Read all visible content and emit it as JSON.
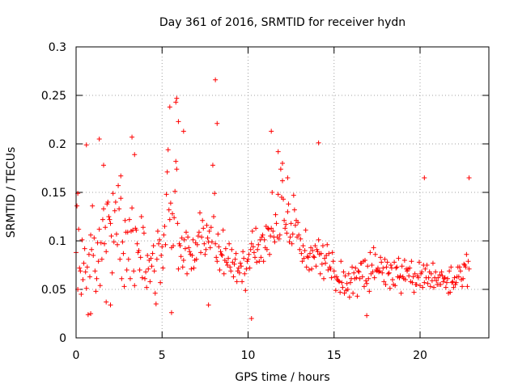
{
  "chart_data": {
    "type": "scatter",
    "title": "Day 361 of 2016, SRMTID for receiver hydn",
    "xlabel": "GPS time / hours",
    "ylabel": "SRMTID / TECUs",
    "xlim": [
      0,
      24
    ],
    "ylim": [
      0,
      0.3
    ],
    "xticks": [
      0,
      5,
      10,
      15,
      20
    ],
    "xtick_labels": [
      "0",
      "5",
      "10",
      "15",
      "20"
    ],
    "yticks": [
      0,
      0.05,
      0.1,
      0.15,
      0.2,
      0.25,
      0.3
    ],
    "ytick_labels": [
      "0",
      "0.05",
      "0.1",
      "0.15",
      "0.2",
      "0.25",
      "0.3"
    ],
    "grid": true,
    "marker": "+",
    "marker_color": "#ff0000",
    "series": [
      {
        "name": "SRMTID",
        "color": "#ff0000",
        "x": [
          0.0,
          0.05,
          0.1,
          0.15,
          0.2,
          0.25,
          0.3,
          0.35,
          0.4,
          0.45,
          0.5,
          0.55,
          0.6,
          0.65,
          0.7,
          0.75,
          0.8,
          0.85,
          0.9,
          0.95,
          1.0,
          1.05,
          1.1,
          1.15,
          1.2,
          1.25,
          1.3,
          1.35,
          1.4,
          1.45,
          1.5,
          1.55,
          1.6,
          1.65,
          1.7,
          1.75,
          1.8,
          1.85,
          1.9,
          1.95,
          2.0,
          2.05,
          2.1,
          2.15,
          2.2,
          2.25,
          2.3,
          2.35,
          2.4,
          2.45,
          2.5,
          2.55,
          2.6,
          2.65,
          2.7,
          2.75,
          2.8,
          2.85,
          2.9,
          2.95,
          3.0,
          3.05,
          3.1,
          3.15,
          3.2,
          3.25,
          3.3,
          3.35,
          3.4,
          3.45,
          3.5,
          3.55,
          3.6,
          3.65,
          3.7,
          3.75,
          3.8,
          3.85,
          3.9,
          3.95,
          4.0,
          4.05,
          4.1,
          4.15,
          4.2,
          4.25,
          4.3,
          4.35,
          4.4,
          4.45,
          4.5,
          4.55,
          4.6,
          4.65,
          4.7,
          4.75,
          4.8,
          4.85,
          4.9,
          4.95,
          5.0,
          5.05,
          5.1,
          5.15,
          5.2,
          5.25,
          5.3,
          5.35,
          5.4,
          5.45,
          5.5,
          5.55,
          5.6,
          5.65,
          5.7,
          5.75,
          5.8,
          5.85,
          5.9,
          5.95,
          6.0,
          6.05,
          6.1,
          6.15,
          6.2,
          6.25,
          6.3,
          6.35,
          6.4,
          6.45,
          6.5,
          6.55,
          6.6,
          6.65,
          6.7,
          6.75,
          6.8,
          6.85,
          6.9,
          6.95,
          7.0,
          7.05,
          7.1,
          7.15,
          7.2,
          7.25,
          7.3,
          7.35,
          7.4,
          7.45,
          7.5,
          7.55,
          7.6,
          7.65,
          7.7,
          7.75,
          7.8,
          7.85,
          7.9,
          7.95,
          8.0,
          8.05,
          8.1,
          8.15,
          8.2,
          8.25,
          8.3,
          8.35,
          8.4,
          8.45,
          8.5,
          8.55,
          8.6,
          8.65,
          8.7,
          8.75,
          8.8,
          8.85,
          8.9,
          8.95,
          9.0,
          9.05,
          9.1,
          9.15,
          9.2,
          9.25,
          9.3,
          9.35,
          9.4,
          9.45,
          9.5,
          9.55,
          9.6,
          9.65,
          9.7,
          9.75,
          9.8,
          9.85,
          9.9,
          9.95,
          10.0,
          10.05,
          10.1,
          10.15,
          10.2,
          10.25,
          10.3,
          10.35,
          10.4,
          10.45,
          10.5,
          10.55,
          10.6,
          10.65,
          10.7,
          10.75,
          10.8,
          10.85,
          10.9,
          10.95,
          11.0,
          11.05,
          11.1,
          11.15,
          11.2,
          11.25,
          11.3,
          11.35,
          11.4,
          11.45,
          11.5,
          11.55,
          11.6,
          11.65,
          11.7,
          11.75,
          11.8,
          11.85,
          11.9,
          11.95,
          12.0,
          12.05,
          12.1,
          12.15,
          12.2,
          12.25,
          12.3,
          12.35,
          12.4,
          12.45,
          12.5,
          12.55,
          12.6,
          12.65,
          12.7,
          12.75,
          12.8,
          12.85,
          12.9,
          12.95,
          13.0,
          13.05,
          13.1,
          13.15,
          13.2,
          13.25,
          13.3,
          13.35,
          13.4,
          13.45,
          13.5,
          13.55,
          13.6,
          13.65,
          13.7,
          13.75,
          13.8,
          13.85,
          13.9,
          13.95,
          14.0,
          14.05,
          14.1,
          14.15,
          14.2,
          14.25,
          14.3,
          14.35,
          14.4,
          14.45,
          14.5,
          14.55,
          14.6,
          14.65,
          14.7,
          14.75,
          14.8,
          14.85,
          14.9,
          14.95,
          15.0,
          15.05,
          15.1,
          15.15,
          15.2,
          15.25,
          15.3,
          15.35,
          15.4,
          15.45,
          15.5,
          15.55,
          15.6,
          15.65,
          15.7,
          15.75,
          15.8,
          15.85,
          15.9,
          15.95,
          16.0,
          16.05,
          16.1,
          16.15,
          16.2,
          16.25,
          16.3,
          16.35,
          16.4,
          16.45,
          16.5,
          16.55,
          16.6,
          16.65,
          16.7,
          16.75,
          16.8,
          16.85,
          16.9,
          16.95,
          17.0,
          17.05,
          17.1,
          17.15,
          17.2,
          17.25,
          17.3,
          17.35,
          17.4,
          17.45,
          17.5,
          17.55,
          17.6,
          17.65,
          17.7,
          17.75,
          17.8,
          17.85,
          17.9,
          17.95,
          18.0,
          18.05,
          18.1,
          18.15,
          18.2,
          18.25,
          18.3,
          18.35,
          18.4,
          18.45,
          18.5,
          18.55,
          18.6,
          18.65,
          18.7,
          18.75,
          18.8,
          18.85,
          18.9,
          18.95,
          19.0,
          19.05,
          19.1,
          19.15,
          19.2,
          19.25,
          19.3,
          19.35,
          19.4,
          19.45,
          19.5,
          19.55,
          19.6,
          19.65,
          19.7,
          19.75,
          19.8,
          19.85,
          19.9,
          19.95,
          20.0,
          20.05,
          20.1,
          20.15,
          20.2,
          20.25,
          20.3,
          20.35,
          20.4,
          20.45,
          20.5,
          20.55,
          20.6,
          20.65,
          20.7,
          20.75,
          20.8,
          20.85,
          20.9,
          20.95,
          21.0,
          21.05,
          21.1,
          21.15,
          21.2,
          21.25,
          21.3,
          21.35,
          21.4,
          21.45,
          21.5,
          21.55,
          21.6,
          21.65,
          21.7,
          21.75,
          21.8,
          21.85,
          21.9,
          21.95,
          22.0,
          22.05,
          22.1,
          22.15,
          22.2,
          22.25,
          22.3,
          22.35,
          22.4,
          22.45,
          22.5,
          22.55,
          22.6,
          22.65,
          22.7,
          22.75,
          22.8,
          22.85,
          0.1,
          0.6,
          0.85,
          1.35,
          1.6,
          1.75,
          2.0,
          2.6,
          3.25,
          3.4,
          5.45,
          5.55,
          5.8,
          5.85,
          5.95,
          6.25,
          7.7,
          8.1,
          8.2,
          10.2,
          11.35,
          11.75,
          12.0,
          12.3,
          14.1,
          16.9,
          20.25,
          22.85
        ],
        "y": [
          0.088,
          0.136,
          0.05,
          0.112,
          0.072,
          0.069,
          0.045,
          0.101,
          0.06,
          0.077,
          0.092,
          0.068,
          0.051,
          0.073,
          0.024,
          0.086,
          0.063,
          0.106,
          0.091,
          0.136,
          0.085,
          0.103,
          0.069,
          0.048,
          0.061,
          0.098,
          0.079,
          0.112,
          0.054,
          0.098,
          0.081,
          0.122,
          0.133,
          0.097,
          0.114,
          0.089,
          0.138,
          0.14,
          0.125,
          0.122,
          0.118,
          0.105,
          0.067,
          0.149,
          0.099,
          0.131,
          0.14,
          0.107,
          0.096,
          0.157,
          0.133,
          0.081,
          0.144,
          0.061,
          0.099,
          0.087,
          0.053,
          0.121,
          0.109,
          0.07,
          0.109,
          0.081,
          0.122,
          0.061,
          0.11,
          0.134,
          0.111,
          0.069,
          0.054,
          0.113,
          0.111,
          0.097,
          0.088,
          0.09,
          0.07,
          0.083,
          0.125,
          0.062,
          0.114,
          0.108,
          0.061,
          0.068,
          0.052,
          0.085,
          0.071,
          0.08,
          0.058,
          0.082,
          0.074,
          0.087,
          0.095,
          0.069,
          0.046,
          0.035,
          0.081,
          0.11,
          0.097,
          0.101,
          0.057,
          0.085,
          0.094,
          0.072,
          0.106,
          0.115,
          0.096,
          0.148,
          0.171,
          0.194,
          0.132,
          0.122,
          0.139,
          0.093,
          0.128,
          0.095,
          0.124,
          0.151,
          0.182,
          0.174,
          0.118,
          0.071,
          0.097,
          0.095,
          0.084,
          0.103,
          0.073,
          0.08,
          0.101,
          0.092,
          0.109,
          0.066,
          0.104,
          0.093,
          0.089,
          0.086,
          0.071,
          0.085,
          0.101,
          0.072,
          0.08,
          0.098,
          0.081,
          0.096,
          0.105,
          0.109,
          0.129,
          0.088,
          0.104,
          0.121,
          0.113,
          0.097,
          0.086,
          0.091,
          0.116,
          0.103,
          0.099,
          0.11,
          0.093,
          0.114,
          0.099,
          0.178,
          0.125,
          0.149,
          0.097,
          0.083,
          0.079,
          0.107,
          0.094,
          0.07,
          0.089,
          0.086,
          0.085,
          0.111,
          0.066,
          0.08,
          0.092,
          0.078,
          0.075,
          0.082,
          0.097,
          0.073,
          0.069,
          0.091,
          0.078,
          0.063,
          0.076,
          0.081,
          0.087,
          0.058,
          0.069,
          0.072,
          0.067,
          0.077,
          0.074,
          0.058,
          0.089,
          0.082,
          0.066,
          0.049,
          0.071,
          0.079,
          0.081,
          0.086,
          0.072,
          0.091,
          0.097,
          0.11,
          0.094,
          0.088,
          0.083,
          0.113,
          0.078,
          0.091,
          0.096,
          0.079,
          0.101,
          0.083,
          0.104,
          0.106,
          0.079,
          0.101,
          0.093,
          0.115,
          0.091,
          0.113,
          0.112,
          0.086,
          0.105,
          0.113,
          0.15,
          0.11,
          0.104,
          0.099,
          0.127,
          0.118,
          0.104,
          0.148,
          0.102,
          0.106,
          0.174,
          0.145,
          0.162,
          0.143,
          0.121,
          0.113,
          0.117,
          0.108,
          0.13,
          0.138,
          0.099,
          0.104,
          0.118,
          0.097,
          0.107,
          0.147,
          0.132,
          0.116,
          0.121,
          0.104,
          0.119,
          0.106,
          0.091,
          0.102,
          0.087,
          0.079,
          0.095,
          0.082,
          0.09,
          0.111,
          0.073,
          0.084,
          0.083,
          0.07,
          0.087,
          0.093,
          0.071,
          0.09,
          0.084,
          0.083,
          0.095,
          0.074,
          0.091,
          0.089,
          0.101,
          0.086,
          0.066,
          0.087,
          0.076,
          0.095,
          0.061,
          0.082,
          0.077,
          0.085,
          0.096,
          0.07,
          0.087,
          0.073,
          0.071,
          0.062,
          0.088,
          0.079,
          0.069,
          0.063,
          0.049,
          0.063,
          0.06,
          0.059,
          0.058,
          0.047,
          0.079,
          0.057,
          0.052,
          0.068,
          0.046,
          0.064,
          0.049,
          0.056,
          0.05,
          0.066,
          0.042,
          0.057,
          0.061,
          0.073,
          0.046,
          0.067,
          0.061,
          0.072,
          0.062,
          0.043,
          0.069,
          0.068,
          0.061,
          0.077,
          0.077,
          0.063,
          0.079,
          0.053,
          0.08,
          0.059,
          0.056,
          0.074,
          0.061,
          0.048,
          0.088,
          0.066,
          0.075,
          0.068,
          0.093,
          0.062,
          0.086,
          0.07,
          0.069,
          0.072,
          0.068,
          0.069,
          0.083,
          0.078,
          0.067,
          0.072,
          0.058,
          0.081,
          0.055,
          0.073,
          0.078,
          0.066,
          0.067,
          0.051,
          0.075,
          0.072,
          0.06,
          0.055,
          0.078,
          0.054,
          0.072,
          0.073,
          0.063,
          0.082,
          0.062,
          0.064,
          0.046,
          0.074,
          0.063,
          0.061,
          0.08,
          0.06,
          0.071,
          0.069,
          0.071,
          0.064,
          0.072,
          0.058,
          0.079,
          0.057,
          0.063,
          0.047,
          0.066,
          0.055,
          0.055,
          0.064,
          0.062,
          0.078,
          0.054,
          0.066,
          0.068,
          0.052,
          0.075,
          0.057,
          0.071,
          0.062,
          0.075,
          0.056,
          0.062,
          0.068,
          0.053,
          0.066,
          0.059,
          0.077,
          0.052,
          0.062,
          0.068,
          0.059,
          0.055,
          0.062,
          0.055,
          0.065,
          0.055,
          0.068,
          0.064,
          0.058,
          0.061,
          0.062,
          0.052,
          0.057,
          0.061,
          0.046,
          0.069,
          0.047,
          0.073,
          0.057,
          0.058,
          0.052,
          0.062,
          0.055,
          0.057,
          0.063,
          0.073,
          0.063,
          0.073,
          0.069,
          0.06,
          0.053,
          0.061,
          0.076,
          0.075,
          0.073,
          0.086,
          0.053,
          0.079,
          0.071,
          0.149,
          0.199,
          0.025,
          0.205,
          0.178,
          0.037,
          0.034,
          0.167,
          0.207,
          0.189,
          0.238,
          0.026,
          0.243,
          0.247,
          0.223,
          0.213,
          0.034,
          0.266,
          0.221,
          0.02,
          0.213,
          0.192,
          0.18,
          0.165,
          0.201,
          0.023,
          0.165,
          0.165
        ]
      }
    ]
  }
}
